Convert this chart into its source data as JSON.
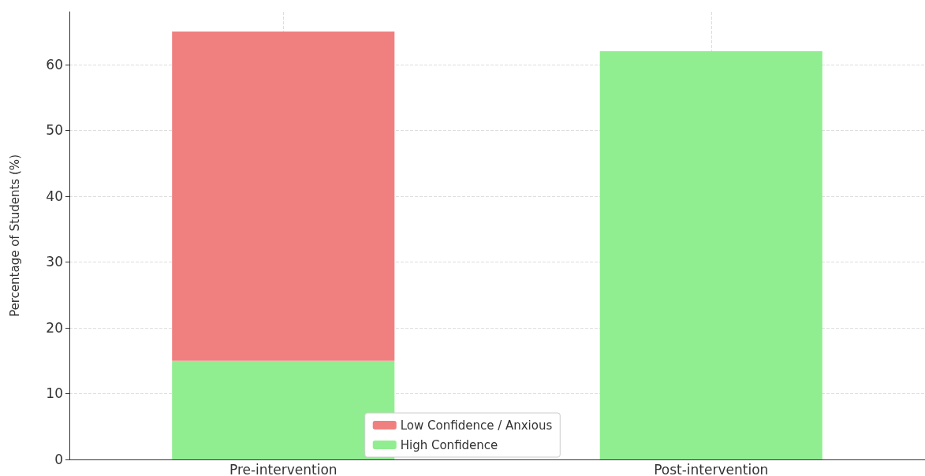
{
  "chart_data": {
    "type": "bar",
    "ylabel": "Percentage of Students (%)",
    "categories": [
      "Pre-intervention",
      "Post-intervention"
    ],
    "series": [
      {
        "name": "High Confidence",
        "color": "#90ee90",
        "values": [
          15,
          62
        ]
      },
      {
        "name": "Low Confidence / Anxious",
        "color": "#f08080",
        "values": [
          50,
          0
        ]
      }
    ],
    "stacked": true,
    "ylim": [
      0,
      68
    ],
    "yticks": [
      0,
      10,
      20,
      30,
      40,
      50,
      60
    ],
    "grid": true,
    "legend": "bottom"
  }
}
